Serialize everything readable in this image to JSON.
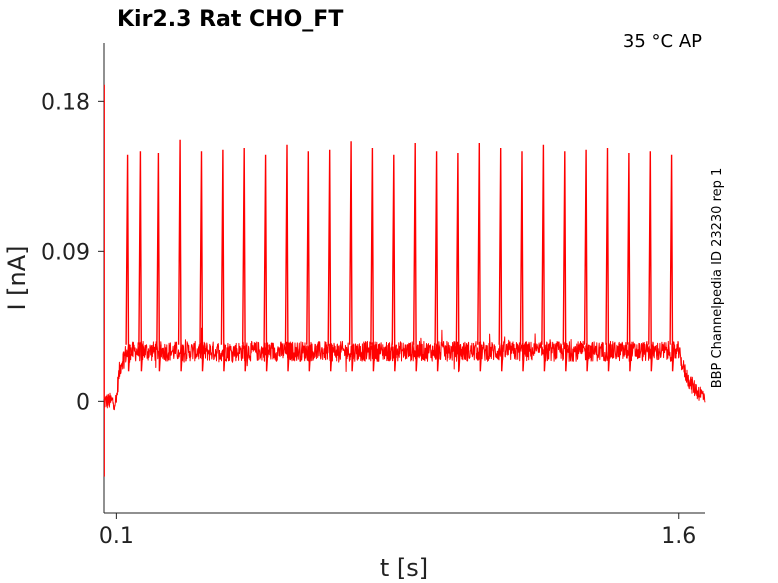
{
  "chart_data": {
    "type": "line",
    "title": "Kir2.3  Rat  CHO_FT",
    "corner_label": "35 °C  AP",
    "side_label": "BBP Channelpedia ID 23230 rep 1",
    "xlabel": "t [s]",
    "ylabel": "I [nA]",
    "xlim": [
      0.067,
      1.67
    ],
    "ylim": [
      -0.067,
      0.215
    ],
    "xticks": [
      {
        "value": 0.1,
        "label": "0.1"
      },
      {
        "value": 1.6,
        "label": "1.6"
      }
    ],
    "yticks": [
      {
        "value": 0.18,
        "label": "0.18"
      },
      {
        "value": 0.09,
        "label": "0.09"
      },
      {
        "value": 0,
        "label": "0"
      }
    ],
    "grid": false,
    "series": [
      {
        "color": "#ff0000",
        "baseline": 0.0,
        "plateau": 0.03,
        "noise_amplitude": 0.006,
        "step_on": 0.1,
        "step_off": 1.6,
        "initial_transient": {
          "t": 0.068,
          "peak": 0.19,
          "min": -0.045
        },
        "spike_times": [
          0.13,
          0.164,
          0.212,
          0.27,
          0.327,
          0.384,
          0.441,
          0.498,
          0.555,
          0.612,
          0.669,
          0.726,
          0.783,
          0.84,
          0.897,
          0.954,
          1.011,
          1.068,
          1.125,
          1.182,
          1.239,
          1.296,
          1.353,
          1.41,
          1.467,
          1.524,
          1.581
        ],
        "spike_peaks": [
          0.148,
          0.15,
          0.149,
          0.157,
          0.15,
          0.151,
          0.152,
          0.148,
          0.154,
          0.15,
          0.151,
          0.156,
          0.152,
          0.148,
          0.155,
          0.15,
          0.149,
          0.155,
          0.152,
          0.15,
          0.154,
          0.15,
          0.151,
          0.152,
          0.149,
          0.15,
          0.148
        ]
      }
    ]
  }
}
